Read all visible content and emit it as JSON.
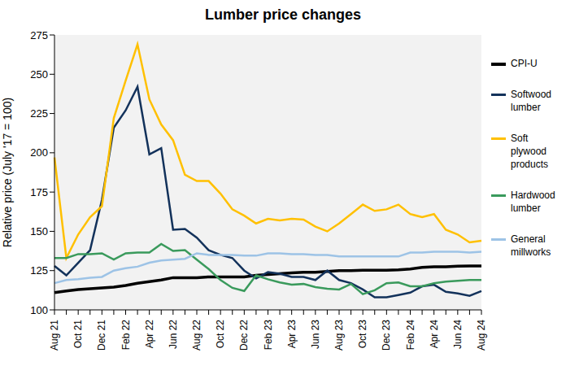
{
  "chart_data": {
    "type": "line",
    "title": "Lumber price changes",
    "y_label": "Relative price (July '17 = 100)",
    "categories": [
      "Aug 21",
      null,
      "Oct 21",
      null,
      "Dec 21",
      null,
      "Feb 22",
      null,
      "Apr 22",
      null,
      "Jun 22",
      null,
      "Aug 22",
      null,
      "Oct 22",
      null,
      "Dec 22",
      null,
      "Feb 23",
      null,
      "Apr 23",
      null,
      "Jun 23",
      null,
      "Aug 23",
      null,
      "Oct 23",
      null,
      "Dec 23",
      null,
      "Feb 24",
      null,
      "Apr 24",
      null,
      "Jun 24",
      null,
      "Aug 24"
    ],
    "series": [
      {
        "name": "CPI-U",
        "color": "#000000",
        "values": [
          111,
          112,
          113,
          113.5,
          114,
          114.5,
          115.5,
          117,
          118,
          119,
          120.5,
          120.5,
          120.5,
          121,
          121,
          121,
          121,
          122,
          122.5,
          123,
          123.5,
          124,
          124,
          124.5,
          125,
          125,
          125.2,
          125.2,
          125.3,
          125.5,
          126,
          127,
          127.5,
          127.5,
          127.8,
          128,
          128
        ]
      },
      {
        "name": "Softwood lumber",
        "color": "#13325b",
        "values": [
          128,
          122,
          130,
          138,
          170,
          216,
          227,
          242,
          199,
          203,
          151,
          151.5,
          146,
          138,
          135,
          133,
          125,
          120,
          124,
          123,
          121,
          121,
          119,
          125,
          119,
          117,
          113,
          108,
          108,
          109.5,
          111,
          115,
          116,
          111.5,
          110.5,
          109,
          112
        ]
      },
      {
        "name": "Soft plywood products",
        "color": "#ffc000",
        "values": [
          197,
          133,
          148,
          159,
          166,
          222,
          246,
          269,
          234,
          218,
          208,
          186,
          182,
          182,
          174,
          164,
          160,
          155,
          158,
          157,
          158,
          157.5,
          153,
          150,
          155,
          161,
          167,
          163,
          164,
          167,
          161,
          159,
          161,
          151,
          148,
          143,
          144
        ]
      },
      {
        "name": "Hardwood lumber",
        "color": "#3a9a5c",
        "values": [
          133,
          133,
          135.5,
          135.5,
          136,
          132,
          136,
          136.5,
          136.5,
          142,
          137.5,
          138,
          132,
          126,
          119,
          114,
          112,
          122,
          119.5,
          117.5,
          116,
          116.5,
          114.5,
          113.5,
          113,
          116.5,
          110,
          112.5,
          117,
          117.5,
          115,
          115,
          117,
          118,
          118.5,
          119,
          119
        ]
      },
      {
        "name": "General millworks",
        "color": "#9dc3e6",
        "values": [
          117,
          119,
          119.5,
          120.5,
          121,
          125,
          126.5,
          127.5,
          130,
          131.5,
          132,
          132.5,
          136,
          135,
          135,
          135,
          134.5,
          134.5,
          136,
          136,
          135.5,
          135.5,
          135,
          135,
          134,
          134,
          134,
          134,
          134,
          134,
          136.5,
          136.5,
          137,
          137,
          137,
          136.5,
          137
        ]
      }
    ],
    "ylim": [
      100,
      275
    ],
    "yticks": [
      100,
      125,
      150,
      175,
      200,
      225,
      250,
      275
    ],
    "grid": false,
    "legend": "right"
  }
}
